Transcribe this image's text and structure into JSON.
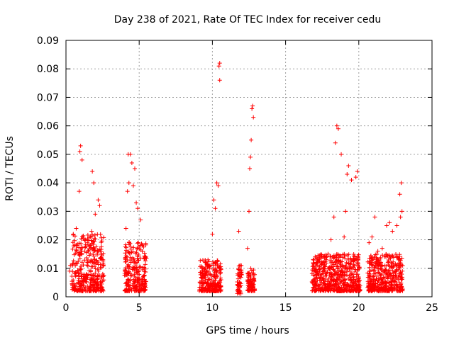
{
  "chart_data": {
    "type": "scatter",
    "title": "Day 238 of 2021, Rate Of TEC Index for receiver cedu",
    "xlabel": "GPS time / hours",
    "ylabel": "ROTI / TECUs",
    "xlim": [
      0,
      25
    ],
    "ylim": [
      0,
      0.09
    ],
    "x_ticks": [
      0,
      5,
      10,
      15,
      20,
      25
    ],
    "y_ticks": [
      0,
      0.01,
      0.02,
      0.03,
      0.04,
      0.05,
      0.06,
      0.07,
      0.08,
      0.09
    ],
    "x_tick_labels": [
      "0",
      "5",
      "10",
      "15",
      "20",
      "25"
    ],
    "y_tick_labels": [
      "0",
      "0.01",
      "0.02",
      "0.03",
      "0.04",
      "0.05",
      "0.06",
      "0.07",
      "0.08",
      "0.09"
    ],
    "grid": true,
    "marker": "+",
    "marker_color": "#ff0000",
    "series": [
      {
        "name": "ROTI",
        "x": [
          0.25,
          0.3,
          0.5,
          0.7,
          0.9,
          0.95,
          1.0,
          1.1,
          1.3,
          1.5,
          1.75,
          1.8,
          1.9,
          2.0,
          2.2,
          2.3,
          4.1,
          4.2,
          4.25,
          4.3,
          4.4,
          4.5,
          4.6,
          4.7,
          4.8,
          4.9,
          5.1,
          5.2,
          9.3,
          9.5,
          9.7,
          10.0,
          10.1,
          10.2,
          10.3,
          10.4,
          10.45,
          10.5,
          10.5,
          11.8,
          11.9,
          12.4,
          12.5,
          12.55,
          12.6,
          12.65,
          12.7,
          12.75,
          12.8,
          17.2,
          17.5,
          17.9,
          18.1,
          18.3,
          18.4,
          18.5,
          18.6,
          18.8,
          19.0,
          19.1,
          19.2,
          19.3,
          19.5,
          19.8,
          19.9,
          20.7,
          20.9,
          21.1,
          21.3,
          21.6,
          21.9,
          22.1,
          22.3,
          22.6,
          22.8,
          22.85,
          22.9,
          22.95
        ],
        "y": [
          0.009,
          0.011,
          0.022,
          0.024,
          0.037,
          0.051,
          0.053,
          0.048,
          0.02,
          0.016,
          0.023,
          0.044,
          0.04,
          0.029,
          0.034,
          0.032,
          0.024,
          0.037,
          0.05,
          0.04,
          0.05,
          0.047,
          0.039,
          0.045,
          0.033,
          0.031,
          0.027,
          0.018,
          0.01,
          0.008,
          0.013,
          0.022,
          0.034,
          0.031,
          0.04,
          0.039,
          0.081,
          0.082,
          0.076,
          0.023,
          0.011,
          0.017,
          0.03,
          0.045,
          0.049,
          0.055,
          0.066,
          0.067,
          0.063,
          0.011,
          0.012,
          0.015,
          0.02,
          0.028,
          0.054,
          0.06,
          0.059,
          0.05,
          0.021,
          0.03,
          0.043,
          0.046,
          0.041,
          0.042,
          0.044,
          0.019,
          0.021,
          0.028,
          0.016,
          0.017,
          0.025,
          0.026,
          0.023,
          0.025,
          0.036,
          0.028,
          0.04,
          0.03
        ]
      }
    ],
    "dense_clusters": [
      {
        "x_start": 0.4,
        "x_end": 2.6,
        "y_min": 0.002,
        "y_max": 0.022
      },
      {
        "x_start": 4.0,
        "x_end": 5.5,
        "y_min": 0.002,
        "y_max": 0.02
      },
      {
        "x_start": 9.1,
        "x_end": 10.6,
        "y_min": 0.002,
        "y_max": 0.013
      },
      {
        "x_start": 11.7,
        "x_end": 12.0,
        "y_min": 0.001,
        "y_max": 0.012
      },
      {
        "x_start": 12.4,
        "x_end": 12.9,
        "y_min": 0.002,
        "y_max": 0.01
      },
      {
        "x_start": 16.8,
        "x_end": 20.1,
        "y_min": 0.002,
        "y_max": 0.015
      },
      {
        "x_start": 20.6,
        "x_end": 23.0,
        "y_min": 0.002,
        "y_max": 0.015
      }
    ]
  }
}
